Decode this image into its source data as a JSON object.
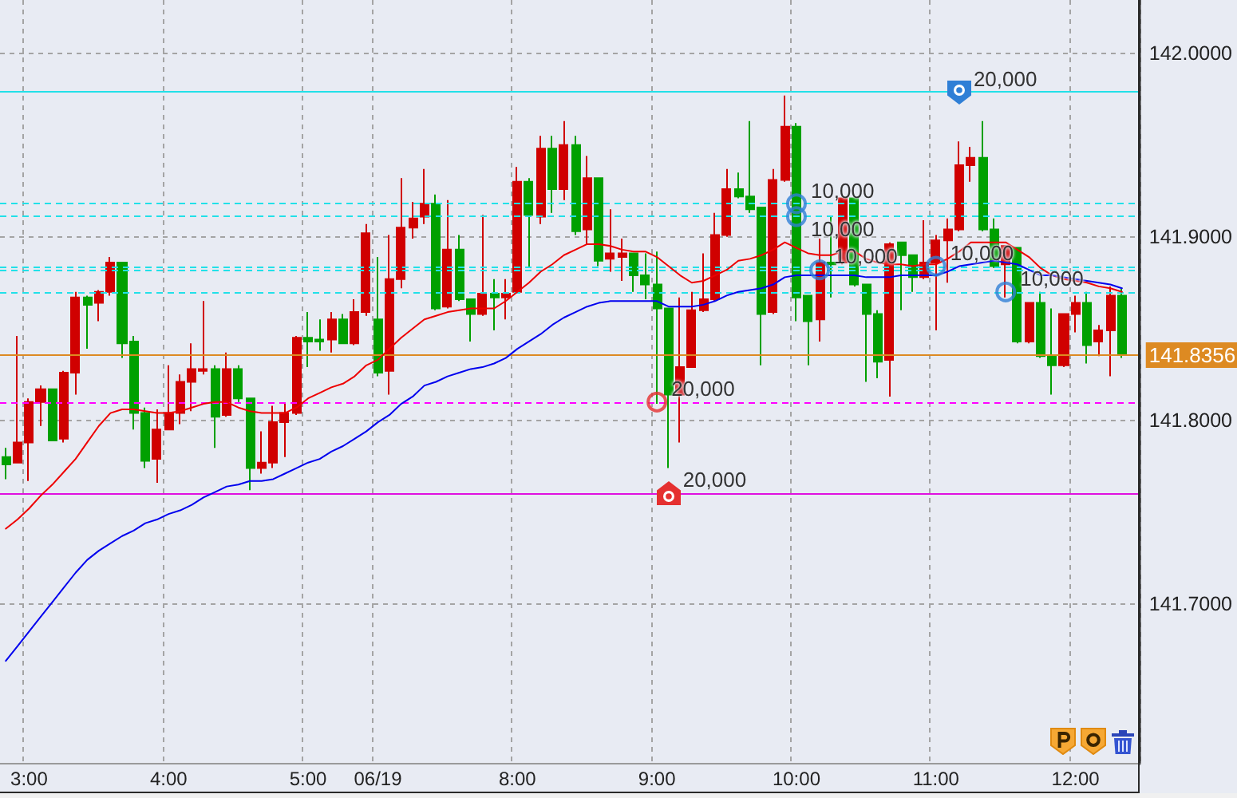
{
  "chart_data": {
    "type": "candlestick",
    "categories": [
      null,
      null,
      "3:00",
      null,
      null,
      null,
      null,
      null,
      null,
      null,
      null,
      null,
      null,
      null,
      "4:00",
      null,
      null,
      null,
      null,
      null,
      null,
      null,
      null,
      null,
      null,
      null,
      "5:00",
      null,
      null,
      null,
      null,
      null,
      "06/19",
      null,
      null,
      null,
      null,
      null,
      null,
      null,
      null,
      null,
      null,
      null,
      "8:00",
      null,
      null,
      null,
      null,
      null,
      null,
      null,
      null,
      null,
      null,
      null,
      "9:00",
      null,
      null,
      null,
      null,
      null,
      null,
      null,
      null,
      null,
      null,
      null,
      "10:00",
      null,
      null,
      null,
      null,
      null,
      null,
      null,
      null,
      null,
      null,
      null,
      "11:00",
      null,
      null,
      null,
      null,
      null,
      null,
      null,
      null,
      null,
      null,
      null,
      "12:00",
      null,
      null,
      null,
      null
    ],
    "ohlc": [
      [
        141.78,
        141.785,
        141.768,
        141.776
      ],
      [
        141.777,
        141.846,
        141.777,
        141.788
      ],
      [
        141.788,
        141.812,
        141.767,
        141.81
      ],
      [
        141.81,
        141.819,
        141.797,
        141.817
      ],
      [
        141.817,
        141.817,
        141.789,
        141.789
      ],
      [
        141.79,
        141.827,
        141.788,
        141.826
      ],
      [
        141.826,
        141.87,
        141.814,
        141.867
      ],
      [
        141.867,
        141.868,
        141.839,
        141.863
      ],
      [
        141.864,
        141.871,
        141.854,
        141.87
      ],
      [
        141.87,
        141.889,
        141.868,
        141.886
      ],
      [
        141.886,
        141.886,
        141.834,
        141.842
      ],
      [
        141.843,
        141.846,
        141.795,
        141.804
      ],
      [
        141.804,
        141.807,
        141.774,
        141.778
      ],
      [
        141.779,
        141.806,
        141.766,
        141.795
      ],
      [
        141.795,
        141.83,
        141.795,
        141.804
      ],
      [
        141.804,
        141.825,
        141.798,
        141.821
      ],
      [
        141.821,
        141.842,
        141.805,
        141.828
      ],
      [
        141.827,
        141.865,
        141.825,
        141.828
      ],
      [
        141.828,
        141.83,
        141.785,
        141.802
      ],
      [
        141.803,
        141.837,
        141.802,
        141.828
      ],
      [
        141.828,
        141.83,
        141.81,
        141.812
      ],
      [
        141.812,
        141.812,
        141.762,
        141.774
      ],
      [
        141.774,
        141.794,
        141.771,
        141.777
      ],
      [
        141.777,
        141.808,
        141.774,
        141.799
      ],
      [
        141.799,
        141.809,
        141.78,
        141.804
      ],
      [
        141.804,
        141.846,
        141.803,
        141.845
      ],
      [
        141.845,
        141.859,
        141.829,
        141.843
      ],
      [
        141.844,
        141.855,
        141.838,
        141.843
      ],
      [
        141.844,
        141.859,
        141.837,
        141.855
      ],
      [
        141.855,
        141.858,
        141.842,
        141.842
      ],
      [
        141.842,
        141.866,
        141.841,
        141.859
      ],
      [
        141.859,
        141.907,
        141.857,
        141.902
      ],
      [
        141.855,
        141.889,
        141.824,
        141.826
      ],
      [
        141.827,
        141.901,
        141.814,
        141.877
      ],
      [
        141.877,
        141.932,
        141.872,
        141.905
      ],
      [
        141.905,
        141.919,
        141.899,
        141.91
      ],
      [
        141.911,
        141.937,
        141.907,
        141.918
      ],
      [
        141.918,
        141.923,
        141.86,
        141.861
      ],
      [
        141.862,
        141.92,
        141.861,
        141.893
      ],
      [
        141.893,
        141.901,
        141.865,
        141.866
      ],
      [
        141.866,
        141.866,
        141.843,
        141.858
      ],
      [
        141.858,
        141.912,
        141.857,
        141.869
      ],
      [
        141.869,
        141.877,
        141.849,
        141.867
      ],
      [
        141.867,
        141.877,
        141.855,
        141.869
      ],
      [
        141.87,
        141.938,
        141.869,
        141.93
      ],
      [
        141.93,
        141.932,
        141.883,
        141.912
      ],
      [
        141.911,
        141.955,
        141.907,
        141.948
      ],
      [
        141.948,
        141.955,
        141.913,
        141.926
      ],
      [
        141.926,
        141.963,
        141.92,
        141.95
      ],
      [
        141.95,
        141.955,
        141.901,
        141.903
      ],
      [
        141.904,
        141.944,
        141.896,
        141.932
      ],
      [
        141.932,
        141.932,
        141.884,
        141.887
      ],
      [
        141.888,
        141.915,
        141.881,
        141.891
      ],
      [
        141.889,
        141.899,
        141.876,
        141.891
      ],
      [
        141.891,
        141.891,
        141.87,
        141.879
      ],
      [
        141.879,
        141.891,
        141.866,
        141.874
      ],
      [
        141.874,
        141.892,
        141.809,
        141.861
      ],
      [
        141.861,
        141.861,
        141.774,
        141.814
      ],
      [
        141.814,
        141.867,
        141.788,
        141.829
      ],
      [
        141.829,
        141.87,
        141.829,
        141.86
      ],
      [
        141.86,
        141.891,
        141.859,
        141.866
      ],
      [
        141.866,
        141.913,
        141.865,
        141.901
      ],
      [
        141.901,
        141.937,
        141.9,
        141.926
      ],
      [
        141.926,
        141.935,
        141.921,
        141.922
      ],
      [
        141.922,
        141.963,
        141.913,
        141.915
      ],
      [
        141.916,
        141.916,
        141.83,
        141.858
      ],
      [
        141.859,
        141.937,
        141.858,
        141.931
      ],
      [
        141.931,
        141.977,
        141.93,
        141.96
      ],
      [
        141.96,
        141.962,
        141.854,
        141.867
      ],
      [
        141.868,
        141.868,
        141.83,
        141.854
      ],
      [
        141.855,
        141.899,
        141.843,
        141.886
      ],
      [
        141.886,
        141.911,
        141.867,
        141.885
      ],
      [
        141.886,
        141.921,
        141.885,
        141.921
      ],
      [
        141.921,
        141.921,
        141.873,
        141.874
      ],
      [
        141.874,
        141.874,
        141.821,
        141.858
      ],
      [
        141.858,
        141.86,
        141.823,
        141.832
      ],
      [
        141.833,
        141.897,
        141.813,
        141.896
      ],
      [
        141.897,
        141.897,
        141.86,
        141.89
      ],
      [
        141.89,
        141.89,
        141.87,
        141.878
      ],
      [
        141.878,
        141.909,
        141.877,
        141.886
      ],
      [
        141.886,
        141.901,
        141.849,
        141.898
      ],
      [
        141.898,
        141.91,
        141.875,
        141.904
      ],
      [
        141.904,
        141.952,
        141.903,
        141.939
      ],
      [
        141.939,
        141.949,
        141.93,
        141.943
      ],
      [
        141.943,
        141.963,
        141.903,
        141.904
      ],
      [
        141.904,
        141.91,
        141.883,
        141.884
      ],
      [
        141.885,
        141.895,
        141.867,
        141.895
      ],
      [
        141.894,
        141.894,
        141.842,
        141.843
      ],
      [
        141.843,
        141.864,
        141.842,
        141.864
      ],
      [
        141.864,
        141.87,
        141.834,
        141.835
      ],
      [
        141.835,
        141.861,
        141.814,
        141.83
      ],
      [
        141.83,
        141.858,
        141.829,
        141.858
      ],
      [
        141.858,
        141.868,
        141.848,
        141.864
      ],
      [
        141.864,
        141.87,
        141.831,
        141.841
      ],
      [
        141.843,
        141.852,
        141.835,
        141.849
      ],
      [
        141.849,
        141.873,
        141.824,
        141.868
      ],
      [
        141.868,
        141.872,
        141.834,
        141.836
      ]
    ],
    "colors": [
      "#00a000",
      "#d00000",
      "#d00000",
      "#d00000",
      "#00a000",
      "#d00000",
      "#d00000",
      "#00a000",
      "#d00000",
      "#d00000",
      "#00a000",
      "#00a000",
      "#00a000",
      "#d00000",
      "#d00000",
      "#d00000",
      "#d00000",
      "#d00000",
      "#00a000",
      "#d00000",
      "#00a000",
      "#00a000",
      "#d00000",
      "#d00000",
      "#d00000",
      "#d00000",
      "#00a000",
      "#00a000",
      "#d00000",
      "#00a000",
      "#d00000",
      "#d00000",
      "#00a000",
      "#d00000",
      "#d00000",
      "#d00000",
      "#d00000",
      "#00a000",
      "#d00000",
      "#00a000",
      "#00a000",
      "#d00000",
      "#00a000",
      "#d00000",
      "#d00000",
      "#00a000",
      "#d00000",
      "#00a000",
      "#d00000",
      "#00a000",
      "#d00000",
      "#00a000",
      "#d00000",
      "#d00000",
      "#00a000",
      "#00a000",
      "#00a000",
      "#00a000",
      "#d00000",
      "#d00000",
      "#d00000",
      "#d00000",
      "#d00000",
      "#00a000",
      "#00a000",
      "#00a000",
      "#d00000",
      "#d00000",
      "#00a000",
      "#00a000",
      "#d00000",
      "#00a000",
      "#d00000",
      "#00a000",
      "#00a000",
      "#00a000",
      "#d00000",
      "#00a000",
      "#00a000",
      "#d00000",
      "#d00000",
      "#d00000",
      "#d00000",
      "#d00000",
      "#00a000",
      "#00a000",
      "#d00000",
      "#00a000",
      "#d00000",
      "#00a000",
      "#00a000",
      "#d00000",
      "#d00000",
      "#00a000",
      "#d00000",
      "#d00000",
      "#00a000"
    ],
    "series": [
      {
        "type": "line",
        "color": "#ee0000",
        "values": [
          141.741,
          141.746,
          141.752,
          141.759,
          141.765,
          141.772,
          141.779,
          141.788,
          141.797,
          141.804,
          141.806,
          141.806,
          141.805,
          141.804,
          141.804,
          141.805,
          141.807,
          141.809,
          141.81,
          141.81,
          141.807,
          141.805,
          141.804,
          141.804,
          141.804,
          141.807,
          141.812,
          141.815,
          141.818,
          141.82,
          141.824,
          141.83,
          141.833,
          141.839,
          141.845,
          141.85,
          141.855,
          141.857,
          141.859,
          141.86,
          141.861,
          141.861,
          141.861,
          141.865,
          141.87,
          141.875,
          141.881,
          141.885,
          141.89,
          141.893,
          141.896,
          141.896,
          141.895,
          141.893,
          141.892,
          141.892,
          141.889,
          141.884,
          141.879,
          141.875,
          141.876,
          141.879,
          141.882,
          141.887,
          141.888,
          141.89,
          141.893,
          141.897,
          141.894,
          141.891,
          141.89,
          141.89,
          141.892,
          141.892,
          141.888,
          141.886,
          141.885,
          141.885,
          141.884,
          141.885,
          141.885,
          141.888,
          141.892,
          141.897,
          141.897,
          141.897,
          141.897,
          141.893,
          141.889,
          141.883,
          141.879,
          141.877,
          141.876,
          141.875,
          141.873,
          141.872,
          141.87
        ]
      },
      {
        "type": "line",
        "color": "#0000ee",
        "values": [
          141.669,
          141.677,
          141.685,
          141.693,
          141.701,
          141.709,
          141.717,
          141.724,
          141.729,
          141.733,
          141.737,
          141.74,
          141.744,
          141.746,
          141.749,
          141.751,
          141.754,
          141.758,
          141.761,
          141.764,
          141.765,
          141.767,
          141.767,
          141.768,
          141.771,
          141.774,
          141.777,
          141.779,
          141.783,
          141.786,
          141.79,
          141.794,
          141.799,
          141.803,
          141.809,
          141.813,
          141.819,
          141.821,
          141.824,
          141.826,
          141.828,
          141.829,
          141.831,
          141.834,
          141.839,
          141.843,
          141.847,
          141.852,
          141.856,
          141.859,
          141.862,
          141.864,
          141.865,
          141.865,
          141.865,
          141.865,
          141.865,
          141.862,
          141.862,
          141.862,
          141.863,
          141.865,
          141.868,
          141.87,
          141.871,
          141.872,
          141.874,
          141.878,
          141.879,
          141.879,
          141.879,
          141.879,
          141.879,
          141.879,
          141.878,
          141.878,
          141.878,
          141.879,
          141.879,
          141.879,
          141.879,
          141.881,
          141.884,
          141.885,
          141.886,
          141.887,
          141.886,
          141.885,
          141.882,
          141.879,
          141.879,
          141.878,
          141.877,
          141.876,
          141.875,
          141.874,
          141.872
        ]
      },
      {
        "type": "scatter",
        "color": "#2f7fd6",
        "values": [
          null,
          null,
          null,
          null,
          null,
          null,
          null,
          null,
          null,
          null,
          null,
          null,
          null,
          null,
          null,
          null,
          null,
          null,
          null,
          null,
          null,
          null,
          null,
          null,
          null,
          null,
          null,
          null,
          null,
          null,
          null,
          null,
          null,
          null,
          null,
          null,
          null,
          null,
          null,
          null,
          null,
          null,
          null,
          null,
          null,
          null,
          null,
          null,
          null,
          null,
          null,
          null,
          null,
          null,
          null,
          null,
          null,
          null,
          null,
          null,
          null,
          null,
          null,
          null,
          null,
          null,
          null,
          null,
          141.918,
          null,
          141.882,
          null,
          null,
          null,
          null,
          null,
          null,
          null,
          null,
          null,
          141.884,
          null,
          null,
          null,
          null,
          null,
          141.87,
          null,
          null,
          null,
          null,
          null,
          null,
          null,
          null,
          null,
          null
        ]
      },
      {
        "type": "scatter",
        "color": "#2f7fd6",
        "values": [
          null,
          null,
          null,
          null,
          null,
          null,
          null,
          null,
          null,
          null,
          null,
          null,
          null,
          null,
          null,
          null,
          null,
          null,
          null,
          null,
          null,
          null,
          null,
          null,
          null,
          null,
          null,
          null,
          null,
          null,
          null,
          null,
          null,
          null,
          null,
          null,
          null,
          null,
          null,
          null,
          null,
          null,
          null,
          null,
          null,
          null,
          null,
          null,
          null,
          null,
          null,
          null,
          null,
          null,
          null,
          null,
          null,
          null,
          null,
          null,
          null,
          null,
          null,
          null,
          null,
          null,
          null,
          null,
          141.911,
          null,
          null,
          null,
          null,
          null,
          null,
          null,
          null,
          null,
          null,
          null,
          null,
          null,
          null,
          null,
          null,
          null,
          null,
          null,
          null,
          null,
          null,
          null,
          null,
          null,
          null,
          null,
          null
        ]
      },
      {
        "type": "scatter",
        "color": "#e53030",
        "values": [
          null,
          null,
          null,
          null,
          null,
          null,
          null,
          null,
          null,
          null,
          null,
          null,
          null,
          null,
          null,
          null,
          null,
          null,
          null,
          null,
          null,
          null,
          null,
          null,
          null,
          null,
          null,
          null,
          null,
          null,
          null,
          null,
          null,
          null,
          null,
          null,
          null,
          null,
          null,
          null,
          null,
          null,
          null,
          null,
          null,
          null,
          null,
          null,
          null,
          null,
          null,
          null,
          null,
          null,
          null,
          null,
          141.81,
          null,
          null,
          null,
          null,
          null,
          null,
          null,
          null,
          null,
          null,
          null,
          null,
          null,
          null,
          null,
          null,
          null,
          null,
          null,
          null,
          null,
          null,
          null,
          null,
          null,
          null,
          null,
          null,
          null,
          null,
          null,
          null,
          null,
          null,
          null,
          null,
          null,
          null,
          null,
          null
        ]
      }
    ],
    "ylim": [
      141.613,
      142.029
    ],
    "yticks": [
      {
        "value": 141.7,
        "label": "141.7000"
      },
      {
        "value": 141.8,
        "label": "141.8000"
      },
      {
        "value": 141.9,
        "label": "141.9000"
      },
      {
        "value": 142.0,
        "label": "142.0000"
      }
    ],
    "ref_lines": [
      {
        "axis": "y",
        "value": 141.8356,
        "label": "141.8356",
        "color": "#dd8a22"
      },
      {
        "axis": "y",
        "value": 141.979,
        "color": "#22e0e8"
      },
      {
        "axis": "y",
        "value": 141.918,
        "color": "#22e0e8",
        "line_style": "dashed"
      },
      {
        "axis": "y",
        "value": 141.911,
        "color": "#22e0e8",
        "line_style": "dashed"
      },
      {
        "axis": "y",
        "value": 141.884,
        "color": "#22e0e8",
        "line_style": "dashed"
      },
      {
        "axis": "y",
        "value": 141.882,
        "color": "#22e0e8",
        "line_style": "dashed"
      },
      {
        "axis": "y",
        "value": 141.87,
        "color": "#22e0e8",
        "line_style": "dashed"
      },
      {
        "axis": "y",
        "value": 141.81,
        "color": "#ff00ff",
        "line_style": "dashed"
      },
      {
        "axis": "y",
        "value": 141.76,
        "color": "#e010e0"
      }
    ],
    "annotations": [
      "20,000",
      "10,000",
      "10,000",
      "10,000",
      "10,000",
      "10,000",
      "20,000",
      "20,000"
    ],
    "grid": true
  }
}
